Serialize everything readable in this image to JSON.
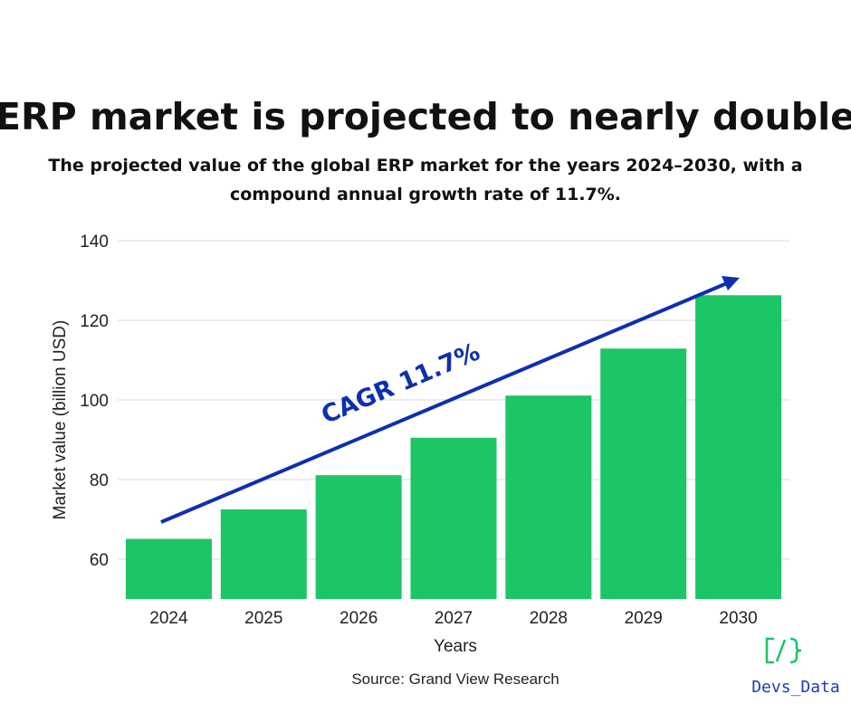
{
  "chart_data": {
    "type": "bar",
    "title": "ERP market is projected to nearly double",
    "subtitle_lines": [
      "The projected value of the global ERP market for the years 2024–2030, with a",
      "compound annual growth rate of 11.7%."
    ],
    "categories": [
      "2024",
      "2025",
      "2026",
      "2027",
      "2028",
      "2029",
      "2030"
    ],
    "values": [
      65.1,
      72.5,
      81.1,
      90.5,
      101.1,
      112.9,
      126.3
    ],
    "xlabel": "Years",
    "ylabel": "Market value (billion USD)",
    "ylim": [
      50,
      140
    ],
    "yticks": [
      60,
      80,
      100,
      120,
      140
    ],
    "grid": true,
    "annotation": "CAGR 11.7%",
    "source": "Source: Grand View Research",
    "colors": {
      "bar": "#1cc566",
      "arrow": "#0d2fb0",
      "grid": "#e6e6e6"
    }
  },
  "logo": {
    "text": "Devs_Data",
    "glyph": "[/}",
    "color_glyph": "#1cc566",
    "color_text": "#1a3fb0"
  }
}
